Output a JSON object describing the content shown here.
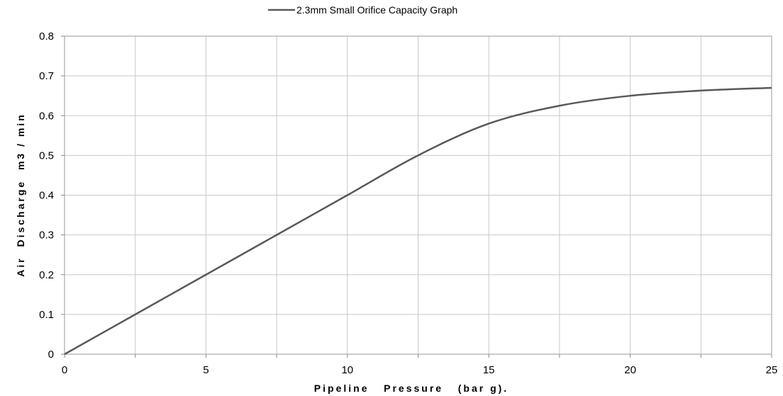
{
  "chart_data": {
    "type": "line",
    "title": "",
    "xlabel": "Pipeline   Pressure   (bar g).",
    "ylabel": "Air  Discharge  m3 / min",
    "xlim": [
      0,
      25
    ],
    "ylim": [
      0,
      0.8
    ],
    "xticks": [
      0,
      5,
      10,
      15,
      20,
      25
    ],
    "yticks": [
      0,
      0.1,
      0.2,
      0.3,
      0.4,
      0.5,
      0.6,
      0.7,
      0.8
    ],
    "xtick_labels": [
      "0",
      "5",
      "10",
      "15",
      "20",
      "25"
    ],
    "ytick_labels": [
      "0",
      "0.1",
      "0.2",
      "0.3",
      "0.4",
      "0.5",
      "0.6",
      "0.7",
      "0.8"
    ],
    "grid": true,
    "legend_position": "top-center",
    "line_color": "#595959",
    "series": [
      {
        "name": "2.3mm Small Orifice Capacity Graph",
        "x": [
          0,
          2.5,
          5,
          7.5,
          10,
          12.5,
          15,
          17.5,
          20,
          22.5,
          25
        ],
        "y": [
          0,
          0.1,
          0.2,
          0.3,
          0.4,
          0.5,
          0.58,
          0.625,
          0.65,
          0.663,
          0.67
        ]
      }
    ]
  }
}
